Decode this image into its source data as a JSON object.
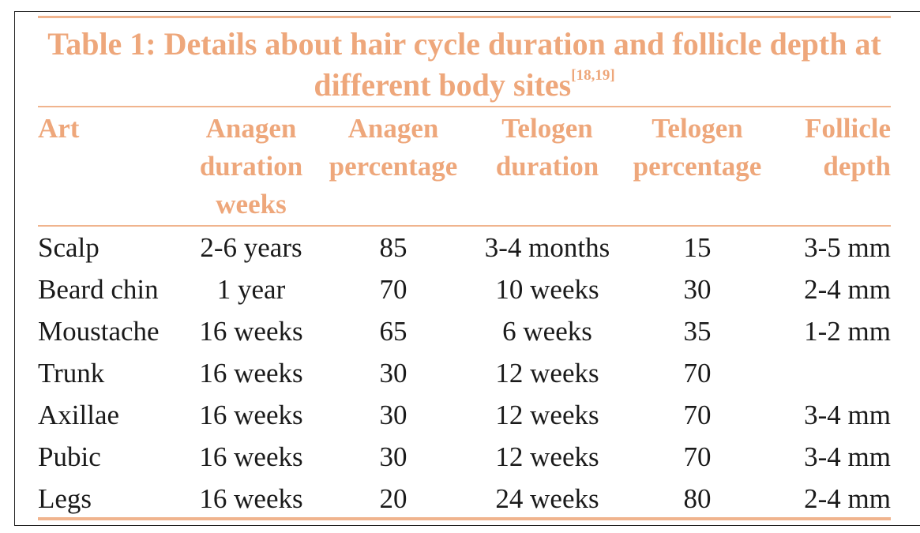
{
  "table": {
    "title_main": "Table 1: Details about hair cycle duration and follicle depth at different body sites",
    "title_ref": "[18,19]",
    "headers": [
      [
        "Art"
      ],
      [
        "Anagen",
        "duration",
        "weeks"
      ],
      [
        "Anagen",
        "percentage"
      ],
      [
        "Telogen",
        "duration"
      ],
      [
        "Telogen",
        "percentage"
      ],
      [
        "Follicle",
        "depth"
      ]
    ],
    "rows": [
      [
        "Scalp",
        "2-6 years",
        "85",
        "3-4 months",
        "15",
        "3-5 mm"
      ],
      [
        "Beard chin",
        "1 year",
        "70",
        "10 weeks",
        "30",
        "2-4 mm"
      ],
      [
        "Moustache",
        "16 weeks",
        "65",
        "6 weeks",
        "35",
        "1-2 mm"
      ],
      [
        "Trunk",
        "16 weeks",
        "30",
        "12 weeks",
        "70",
        ""
      ],
      [
        "Axillae",
        "16 weeks",
        "30",
        "12 weeks",
        "70",
        "3-4 mm"
      ],
      [
        "Pubic",
        "16 weeks",
        "30",
        "12 weeks",
        "70",
        "3-4 mm"
      ],
      [
        "Legs",
        "16 weeks",
        "20",
        "24 weeks",
        "80",
        "2-4 mm"
      ]
    ]
  },
  "colors": {
    "accent": "#eea77b",
    "rule": "#f0b48e",
    "text": "#1a1a1a"
  }
}
